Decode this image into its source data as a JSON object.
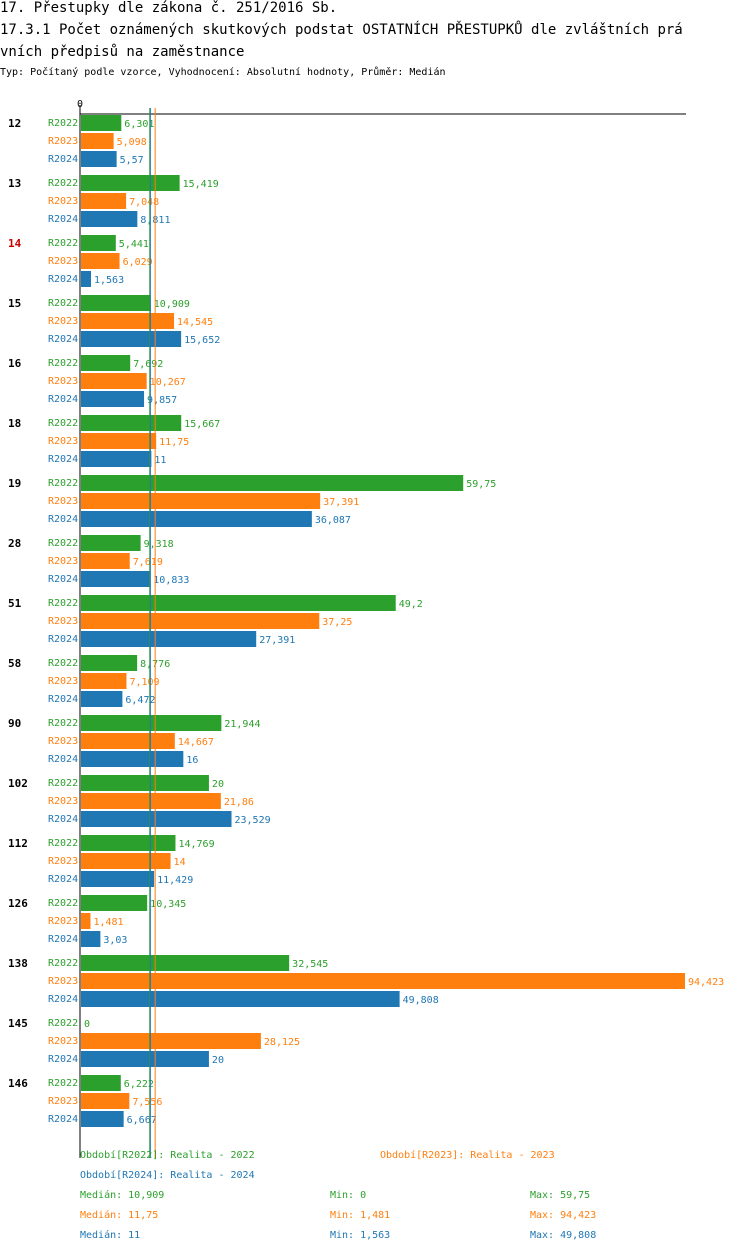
{
  "title_line1": "17. Přestupky dle zákona č. 251/2016 Sb.",
  "title_line2": "17.3.1 Počet oznámených skutkových podstat OSTATNÍCH PŘESTUPKŮ dle zvláštních prá",
  "title_line3": "vních předpisů na zaměstnance",
  "subtitle": "Typ: Počítaný podle vzorce, Vyhodnocení: Absolutní hodnoty, Průměr: Medián",
  "colors": {
    "R2022": "#2ca02c",
    "R2023": "#ff7f0e",
    "R2024": "#1f77b4",
    "highlight": "#cc0000",
    "axis": "#000000"
  },
  "chart_data": {
    "type": "bar",
    "orientation": "horizontal",
    "axis_origin_label": "0",
    "xlim": [
      0,
      94.423
    ],
    "categories": [
      "12",
      "13",
      "14",
      "15",
      "16",
      "18",
      "19",
      "28",
      "51",
      "58",
      "90",
      "102",
      "112",
      "126",
      "138",
      "145",
      "146"
    ],
    "highlighted_category": "14",
    "series": [
      {
        "name": "R2022",
        "values": [
          6.301,
          15.419,
          5.441,
          10.909,
          7.692,
          15.667,
          59.75,
          9.318,
          49.2,
          8.776,
          21.944,
          20,
          14.769,
          10.345,
          32.545,
          0,
          6.222
        ],
        "labels": [
          "6,301",
          "15,419",
          "5,441",
          "10,909",
          "7,692",
          "15,667",
          "59,75",
          "9,318",
          "49,2",
          "8,776",
          "21,944",
          "20",
          "14,769",
          "10,345",
          "32,545",
          "0",
          "6,222"
        ]
      },
      {
        "name": "R2023",
        "values": [
          5.098,
          7.048,
          6.029,
          14.545,
          10.267,
          11.75,
          37.391,
          7.619,
          37.25,
          7.109,
          14.667,
          21.86,
          14,
          1.481,
          94.423,
          28.125,
          7.556
        ],
        "labels": [
          "5,098",
          "7,048",
          "6,029",
          "14,545",
          "10,267",
          "11,75",
          "37,391",
          "7,619",
          "37,25",
          "7,109",
          "14,667",
          "21,86",
          "14",
          "1,481",
          "94,423",
          "28,125",
          "7,556"
        ]
      },
      {
        "name": "R2024",
        "values": [
          5.57,
          8.811,
          1.563,
          15.652,
          9.857,
          11,
          36.087,
          10.833,
          27.391,
          6.472,
          16,
          23.529,
          11.429,
          3.03,
          49.808,
          20,
          6.667
        ],
        "labels": [
          "5,57",
          "8,811",
          "1,563",
          "15,652",
          "9,857",
          "11",
          "36,087",
          "10,833",
          "27,391",
          "6,472",
          "16",
          "23,529",
          "11,429",
          "3,03",
          "49,808",
          "20",
          "6,667"
        ]
      }
    ],
    "median_lines": {
      "R2022": 10.909,
      "R2023": 11.75,
      "R2024": 11
    }
  },
  "legend": {
    "period_2022": "Období[R2022]: Realita - 2022",
    "period_2023": "Období[R2023]: Realita - 2023",
    "period_2024": "Období[R2024]: Realita - 2024",
    "stats": [
      {
        "series": "R2022",
        "median": "Medián: 10,909",
        "min": "Min: 0",
        "max": "Max: 59,75"
      },
      {
        "series": "R2023",
        "median": "Medián: 11,75",
        "min": "Min: 1,481",
        "max": "Max: 94,423"
      },
      {
        "series": "R2024",
        "median": "Medián: 11",
        "min": "Min: 1,563",
        "max": "Max: 49,808"
      }
    ]
  }
}
